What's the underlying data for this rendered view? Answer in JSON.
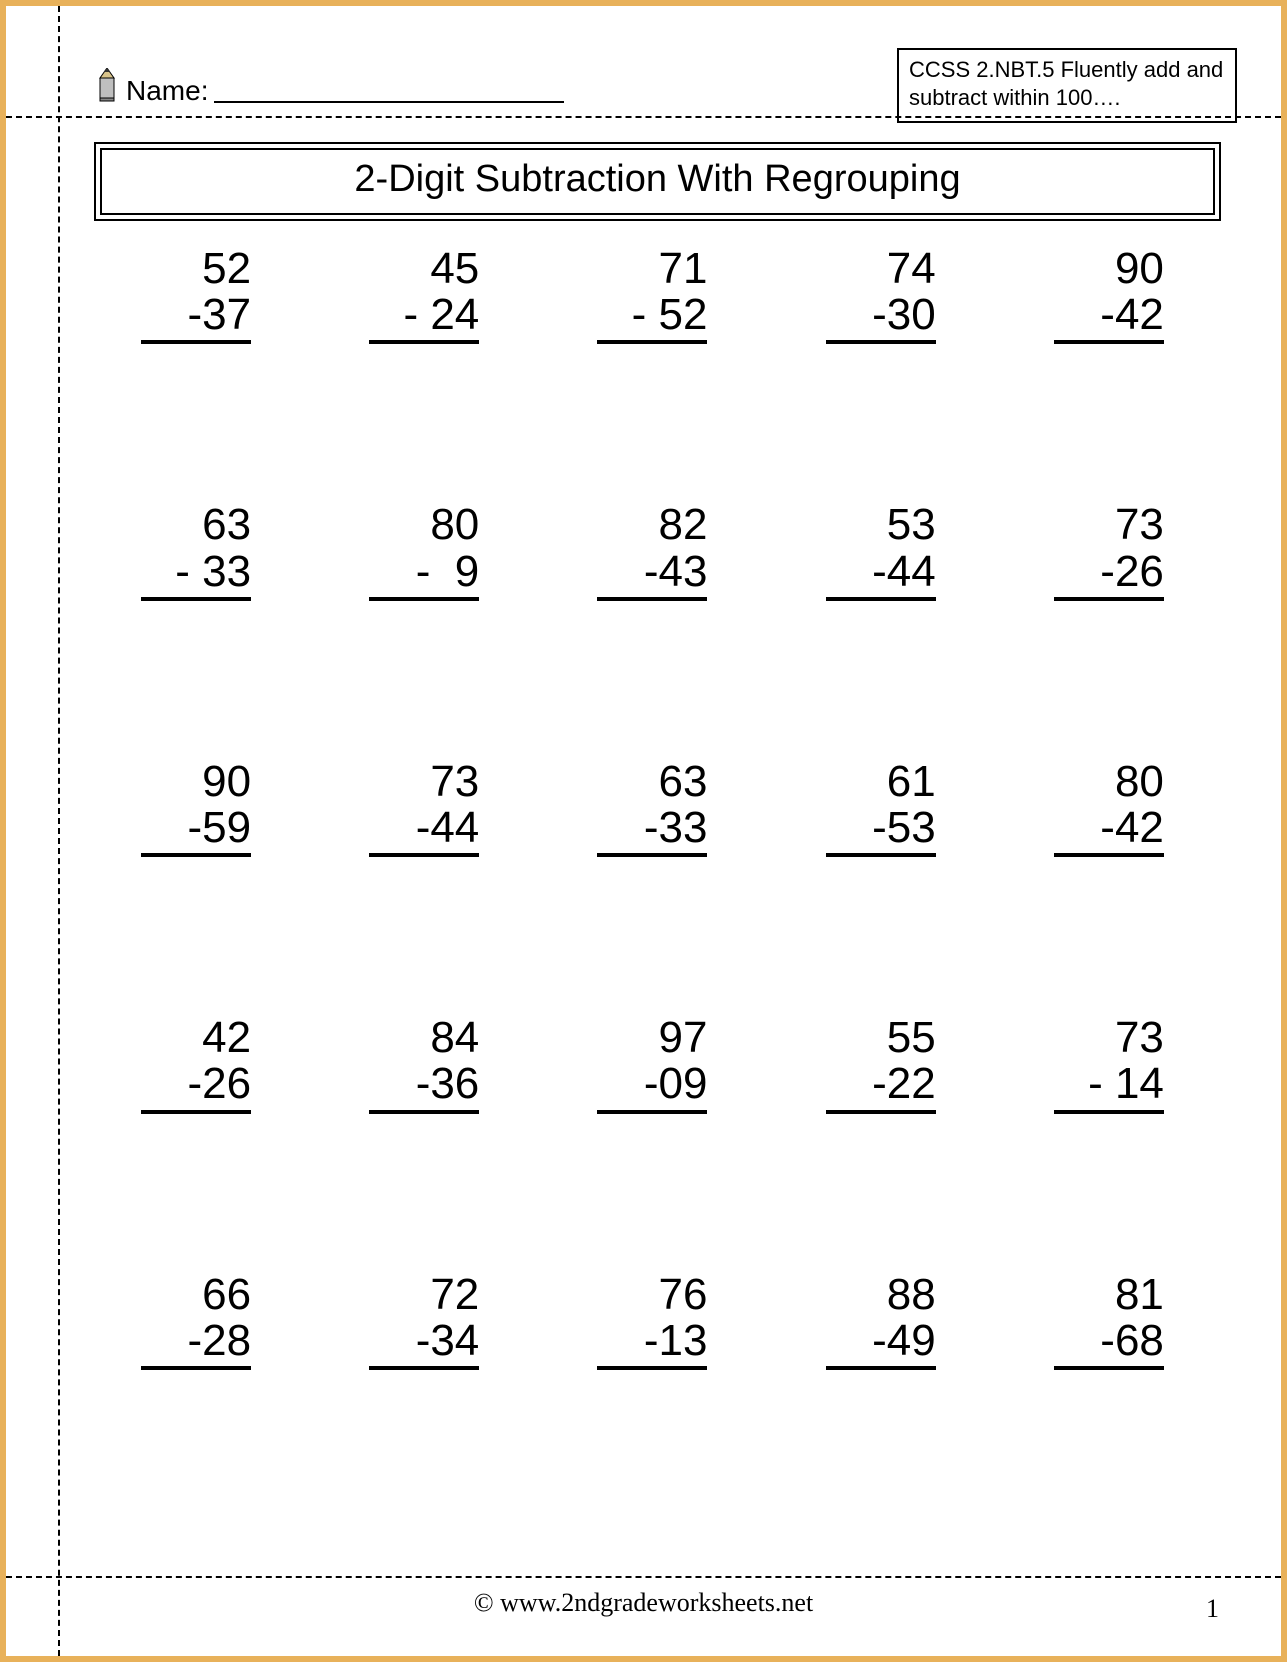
{
  "header": {
    "name_label": "Name:",
    "standards_text": "CCSS  2.NBT.5  Fluently add and subtract within 100…."
  },
  "title": "2-Digit Subtraction With Regrouping",
  "worksheet": {
    "type": "subtraction-vertical",
    "columns": 5,
    "rows": 5,
    "font_family": "Arial",
    "number_fontsize": 44,
    "text_color": "#000000",
    "background_color": "#ffffff",
    "problems": [
      {
        "minuend": "52",
        "subtrahend": "-37"
      },
      {
        "minuend": "45",
        "subtrahend": "- 24"
      },
      {
        "minuend": "71",
        "subtrahend": "- 52"
      },
      {
        "minuend": "74",
        "subtrahend": "-30"
      },
      {
        "minuend": "90",
        "subtrahend": "-42"
      },
      {
        "minuend": "63",
        "subtrahend": "- 33"
      },
      {
        "minuend": "80",
        "subtrahend": "-  9"
      },
      {
        "minuend": "82",
        "subtrahend": "-43"
      },
      {
        "minuend": "53",
        "subtrahend": "-44"
      },
      {
        "minuend": "73",
        "subtrahend": "-26"
      },
      {
        "minuend": "90",
        "subtrahend": "-59"
      },
      {
        "minuend": "73",
        "subtrahend": "-44"
      },
      {
        "minuend": "63",
        "subtrahend": "-33"
      },
      {
        "minuend": "61",
        "subtrahend": "-53"
      },
      {
        "minuend": "80",
        "subtrahend": "-42"
      },
      {
        "minuend": "42",
        "subtrahend": "-26"
      },
      {
        "minuend": "84",
        "subtrahend": "-36"
      },
      {
        "minuend": "97",
        "subtrahend": "-09"
      },
      {
        "minuend": "55",
        "subtrahend": "-22"
      },
      {
        "minuend": "73",
        "subtrahend": "- 14"
      },
      {
        "minuend": "66",
        "subtrahend": "-28"
      },
      {
        "minuend": "72",
        "subtrahend": "-34"
      },
      {
        "minuend": "76",
        "subtrahend": "-13"
      },
      {
        "minuend": "88",
        "subtrahend": "-49"
      },
      {
        "minuend": "81",
        "subtrahend": "-68"
      }
    ]
  },
  "footer": {
    "credit": "© www.2ndgradeworksheets.net",
    "page_number": "1"
  },
  "colors": {
    "page_border": "#e8b15a",
    "line": "#000000",
    "text": "#000000",
    "background": "#ffffff"
  }
}
